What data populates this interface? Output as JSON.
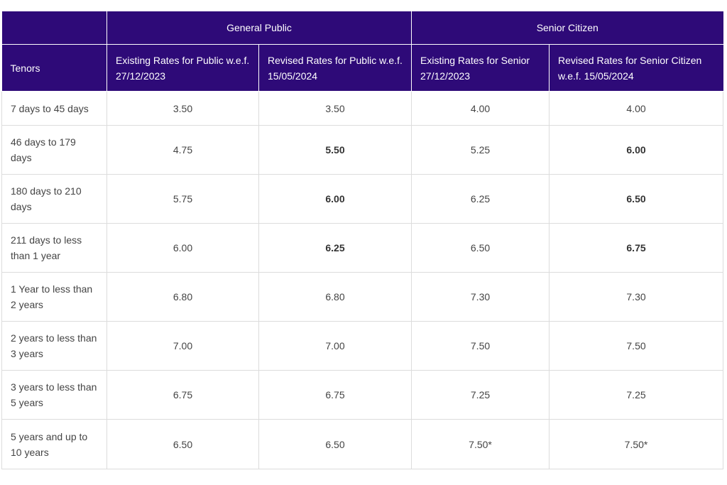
{
  "table": {
    "group_headers": [
      "",
      "General Public",
      "Senior Citizen"
    ],
    "column_headers": [
      "Tenors",
      "Existing Rates for Public w.e.f. 27/12/2023",
      "Revised Rates for Public w.e.f. 15/05/2024",
      "Existing Rates for Senior 27/12/2023",
      "Revised Rates for Senior Citizen w.e.f. 15/05/2024"
    ],
    "rows": [
      {
        "tenor": "7 days to 45 days",
        "public_existing": "3.50",
        "public_revised": "3.50",
        "senior_existing": "4.00",
        "senior_revised": "4.00",
        "revised_bold": false
      },
      {
        "tenor": "46 days to 179 days",
        "public_existing": "4.75",
        "public_revised": "5.50",
        "senior_existing": "5.25",
        "senior_revised": "6.00",
        "revised_bold": true
      },
      {
        "tenor": "180 days to 210 days",
        "public_existing": "5.75",
        "public_revised": "6.00",
        "senior_existing": "6.25",
        "senior_revised": "6.50",
        "revised_bold": true
      },
      {
        "tenor": "211 days to less than 1 year",
        "public_existing": "6.00",
        "public_revised": "6.25",
        "senior_existing": "6.50",
        "senior_revised": "6.75",
        "revised_bold": true
      },
      {
        "tenor": "1 Year to less than 2 years",
        "public_existing": "6.80",
        "public_revised": "6.80",
        "senior_existing": "7.30",
        "senior_revised": "7.30",
        "revised_bold": false
      },
      {
        "tenor": "2 years to less than 3 years",
        "public_existing": "7.00",
        "public_revised": "7.00",
        "senior_existing": "7.50",
        "senior_revised": "7.50",
        "revised_bold": false
      },
      {
        "tenor": "3 years to less than 5 years",
        "public_existing": "6.75",
        "public_revised": "6.75",
        "senior_existing": "7.25",
        "senior_revised": "7.25",
        "revised_bold": false
      },
      {
        "tenor": "5 years and up to 10 years",
        "public_existing": "6.50",
        "public_revised": "6.50",
        "senior_existing": "7.50*",
        "senior_revised": "7.50*",
        "revised_bold": false
      }
    ]
  },
  "colors": {
    "header_bg": "#2e0a78",
    "header_text": "#ffffff",
    "border": "#dcdcdc",
    "body_text": "#444444"
  }
}
